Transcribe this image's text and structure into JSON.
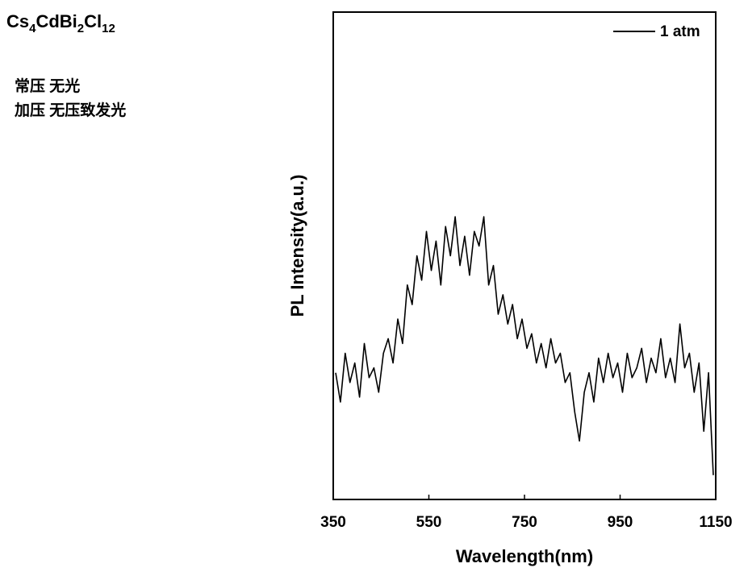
{
  "chart_data": {
    "type": "line",
    "title": "Cs4CdBi2Cl12",
    "annotations": [
      "常压 无光",
      "加压 无压致发光"
    ],
    "x_label": "Wavelength(nm)",
    "y_label": "PL Intensity(a.u.)",
    "x": [
      355,
      365,
      375,
      385,
      395,
      405,
      415,
      425,
      435,
      445,
      455,
      465,
      475,
      485,
      495,
      505,
      515,
      525,
      535,
      545,
      555,
      565,
      575,
      585,
      595,
      605,
      615,
      625,
      635,
      645,
      655,
      665,
      675,
      685,
      695,
      705,
      715,
      725,
      735,
      745,
      755,
      765,
      775,
      785,
      795,
      805,
      815,
      825,
      835,
      845,
      855,
      865,
      875,
      885,
      895,
      905,
      915,
      925,
      935,
      945,
      955,
      965,
      975,
      985,
      995,
      1005,
      1015,
      1025,
      1035,
      1045,
      1055,
      1065,
      1075,
      1085,
      1095,
      1105,
      1115,
      1125,
      1135,
      1145
    ],
    "series": [
      {
        "name": "1 atm",
        "color": "#000000",
        "values": [
          26,
          20,
          30,
          24,
          28,
          21,
          32,
          25,
          27,
          22,
          30,
          33,
          28,
          37,
          32,
          44,
          40,
          50,
          45,
          55,
          47,
          53,
          44,
          56,
          50,
          58,
          48,
          54,
          46,
          55,
          52,
          58,
          44,
          48,
          38,
          42,
          36,
          40,
          33,
          37,
          31,
          34,
          28,
          32,
          27,
          33,
          28,
          30,
          24,
          26,
          18,
          12,
          22,
          26,
          20,
          29,
          24,
          30,
          25,
          28,
          22,
          30,
          25,
          27,
          31,
          24,
          29,
          26,
          33,
          25,
          29,
          24,
          36,
          27,
          30,
          22,
          28,
          14,
          26,
          5
        ]
      }
    ],
    "xlim": [
      350,
      1150
    ],
    "xticks": [
      350,
      550,
      750,
      950,
      1150
    ],
    "ylim": [
      0,
      100
    ],
    "legend": "top-right"
  }
}
